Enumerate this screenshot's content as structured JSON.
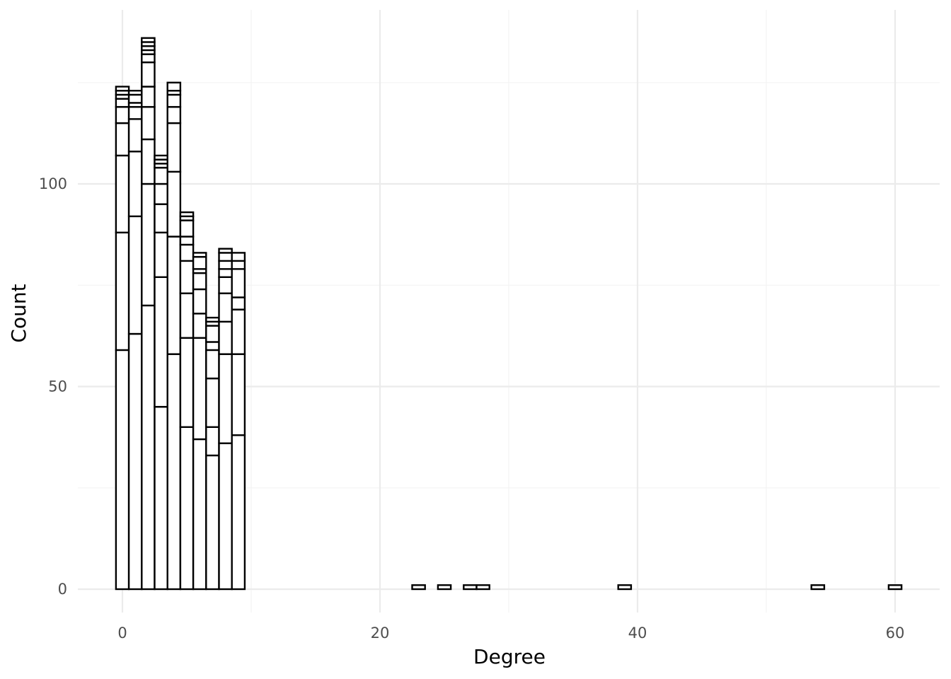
{
  "chart_data": {
    "type": "bar",
    "subtype": "stacked histogram",
    "title": "",
    "xlabel": "Degree",
    "ylabel": "Count",
    "xlim": [
      -3.5,
      63
    ],
    "ylim": [
      -6,
      142
    ],
    "x_ticks": [
      0,
      20,
      40,
      60
    ],
    "y_ticks": [
      0,
      50,
      100
    ],
    "grid": true,
    "legend": "none",
    "bin_width": 1,
    "bars": [
      {
        "x": 0,
        "segments": [
          59,
          29,
          19,
          8,
          4,
          2,
          1,
          1,
          1
        ]
      },
      {
        "x": 1,
        "segments": [
          63,
          29,
          16,
          8,
          3,
          1,
          2,
          1
        ]
      },
      {
        "x": 2,
        "segments": [
          70,
          30,
          11,
          8,
          5,
          6,
          2,
          1,
          1,
          1,
          1
        ]
      },
      {
        "x": 3,
        "segments": [
          45,
          32,
          11,
          7,
          5,
          4,
          1,
          1,
          1
        ]
      },
      {
        "x": 4,
        "segments": [
          58,
          29,
          16,
          12,
          4,
          3,
          1,
          2
        ]
      },
      {
        "x": 5,
        "segments": [
          40,
          22,
          11,
          8,
          4,
          2,
          4,
          1,
          1
        ]
      },
      {
        "x": 6,
        "segments": [
          37,
          25,
          6,
          6,
          4,
          1,
          3,
          1
        ]
      },
      {
        "x": 7,
        "segments": [
          33,
          7,
          12,
          7,
          2,
          4,
          1,
          1
        ]
      },
      {
        "x": 8,
        "segments": [
          36,
          22,
          8,
          7,
          4,
          2,
          2,
          2,
          1
        ]
      },
      {
        "x": 9,
        "segments": [
          38,
          20,
          11,
          3,
          7,
          2,
          2
        ]
      },
      {
        "x": 23,
        "segments": [
          1
        ]
      },
      {
        "x": 25,
        "segments": [
          1
        ]
      },
      {
        "x": 27,
        "segments": [
          1
        ]
      },
      {
        "x": 28,
        "segments": [
          1
        ]
      },
      {
        "x": 39,
        "segments": [
          1
        ]
      },
      {
        "x": 54,
        "segments": [
          1
        ]
      },
      {
        "x": 60,
        "segments": [
          1
        ]
      }
    ],
    "colors": {
      "bar_fill": "#ffffff",
      "bar_outline": "#000000",
      "grid_major": "#ebebeb",
      "grid_minor": "#f4f4f4",
      "tick_text": "#4d4d4d",
      "axis_title": "#000000"
    }
  }
}
